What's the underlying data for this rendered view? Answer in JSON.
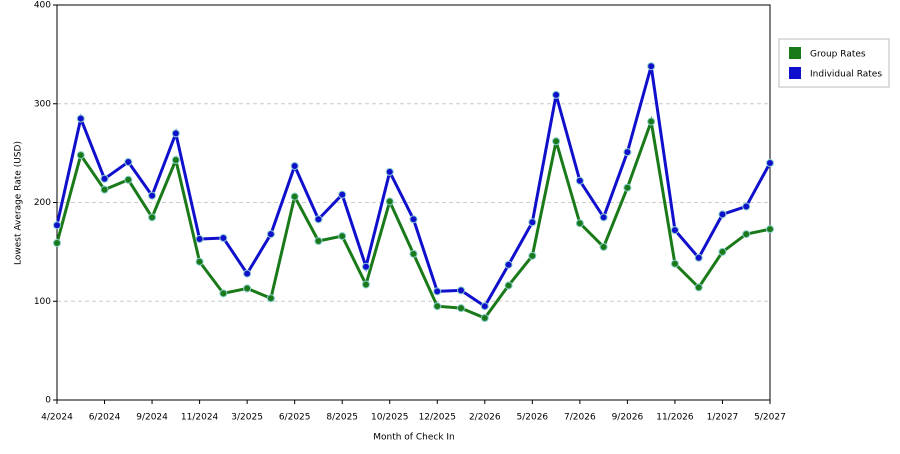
{
  "chart_data": {
    "type": "line",
    "x_label": "Month of Check In",
    "y_label": "Lowest Average Rate (USD)",
    "categories": [
      "4/2024",
      null,
      "6/2024",
      null,
      "9/2024",
      null,
      "11/2024",
      null,
      "3/2025",
      null,
      "6/2025",
      null,
      "8/2025",
      null,
      "10/2025",
      null,
      "12/2025",
      null,
      "2/2026",
      null,
      "5/2026",
      null,
      "7/2026",
      null,
      "9/2026",
      null,
      "11/2026",
      null,
      "1/2027",
      null,
      "5/2027"
    ],
    "series": [
      {
        "name": "Group Rates",
        "color": "#1a7a1a",
        "values": [
          159,
          248,
          213,
          223,
          185,
          243,
          140,
          108,
          113,
          103,
          206,
          161,
          166,
          117,
          201,
          148,
          95,
          93,
          83,
          116,
          146,
          262,
          179,
          155,
          215,
          282,
          138,
          114,
          150,
          168,
          173
        ]
      },
      {
        "name": "Individual Rates",
        "color": "#1010cc",
        "values": [
          177,
          285,
          224,
          241,
          207,
          270,
          163,
          164,
          128,
          168,
          237,
          183,
          208,
          135,
          231,
          183,
          110,
          111,
          95,
          137,
          180,
          309,
          222,
          185,
          251,
          338,
          172,
          144,
          188,
          196,
          240
        ]
      }
    ],
    "ylim": [
      0,
      400
    ],
    "yticks": [
      0,
      100,
      200,
      300,
      400
    ],
    "grid": true,
    "legend": "top-right"
  }
}
